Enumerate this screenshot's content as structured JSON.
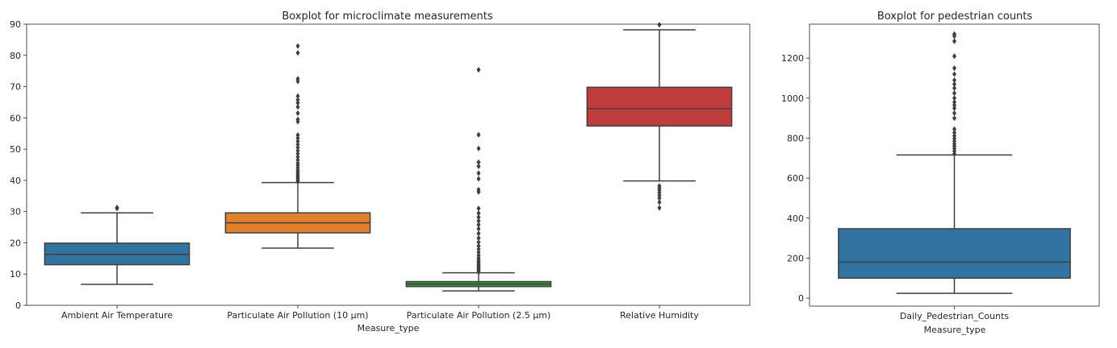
{
  "chart_data": [
    {
      "type": "box",
      "title": "Boxplot for microclimate measurements",
      "xlabel": "Measure_type",
      "ylabel": "",
      "ylim": [
        0,
        90
      ],
      "yticks": [
        0,
        10,
        20,
        30,
        40,
        50,
        60,
        70,
        80,
        90
      ],
      "grid": false,
      "categories": [
        "Ambient Air Temperature",
        "Particulate Air Pollution (10 µm)",
        "Particulate Air Pollution (2.5 µm)",
        "Relative Humidity"
      ],
      "boxes": [
        {
          "name": "Ambient Air Temperature",
          "color": "#3274a1",
          "whisker_low": 6.7,
          "q1": 13.0,
          "median": 16.3,
          "q3": 19.9,
          "whisker_high": 29.6,
          "outliers": [
            31.0,
            31.3
          ]
        },
        {
          "name": "Particulate Air Pollution (10 µm)",
          "color": "#e1812c",
          "whisker_low": 18.3,
          "q1": 23.2,
          "median": 26.4,
          "q3": 29.6,
          "whisker_high": 39.3,
          "outliers": [
            39.6,
            40.0,
            40.5,
            41.0,
            41.5,
            42.0,
            42.6,
            43.2,
            44.0,
            44.8,
            45.5,
            46.5,
            47.5,
            48.5,
            49.5,
            50.5,
            51.5,
            52.5,
            53.5,
            54.5,
            58.8,
            59.5,
            61.5,
            63.5,
            64.8,
            65.8,
            67.0,
            71.7,
            72.5,
            80.8,
            83.0
          ]
        },
        {
          "name": "Particulate Air Pollution (2.5 µm)",
          "color": "#3a923a",
          "whisker_low": 4.6,
          "q1": 6.0,
          "median": 6.8,
          "q3": 7.6,
          "whisker_high": 10.4,
          "outliers": [
            10.6,
            11.0,
            11.4,
            11.8,
            12.2,
            12.6,
            13.0,
            13.5,
            14.0,
            14.6,
            15.2,
            16.0,
            17.0,
            18.0,
            19.0,
            20.2,
            21.5,
            23.0,
            24.5,
            25.8,
            27.0,
            28.2,
            29.5,
            31.0,
            36.3,
            37.0,
            40.5,
            42.3,
            44.5,
            45.8,
            50.2,
            54.6,
            75.4
          ]
        },
        {
          "name": "Relative Humidity",
          "color": "#c03d3e",
          "whisker_low": 39.8,
          "q1": 57.4,
          "median": 63.0,
          "q3": 69.8,
          "whisker_high": 88.2,
          "outliers": [
            31.2,
            33.0,
            34.3,
            35.2,
            36.0,
            36.8,
            37.5,
            38.2,
            89.8
          ]
        }
      ]
    },
    {
      "type": "box",
      "title": "Boxplot for pedestrian counts",
      "xlabel": "Measure_type",
      "ylabel": "",
      "ylim": [
        -40,
        1370
      ],
      "yticks": [
        0,
        200,
        400,
        600,
        800,
        1000,
        1200
      ],
      "grid": false,
      "categories": [
        "Daily_Pedestrian_Counts"
      ],
      "boxes": [
        {
          "name": "Daily_Pedestrian_Counts",
          "color": "#3274a1",
          "whisker_low": 24,
          "q1": 100,
          "median": 180,
          "q3": 347,
          "whisker_high": 716,
          "outliers": [
            722,
            735,
            748,
            760,
            772,
            785,
            798,
            812,
            828,
            845,
            900,
            925,
            950,
            965,
            980,
            1000,
            1025,
            1050,
            1070,
            1090,
            1120,
            1150,
            1210,
            1285,
            1310,
            1320
          ]
        }
      ]
    }
  ]
}
